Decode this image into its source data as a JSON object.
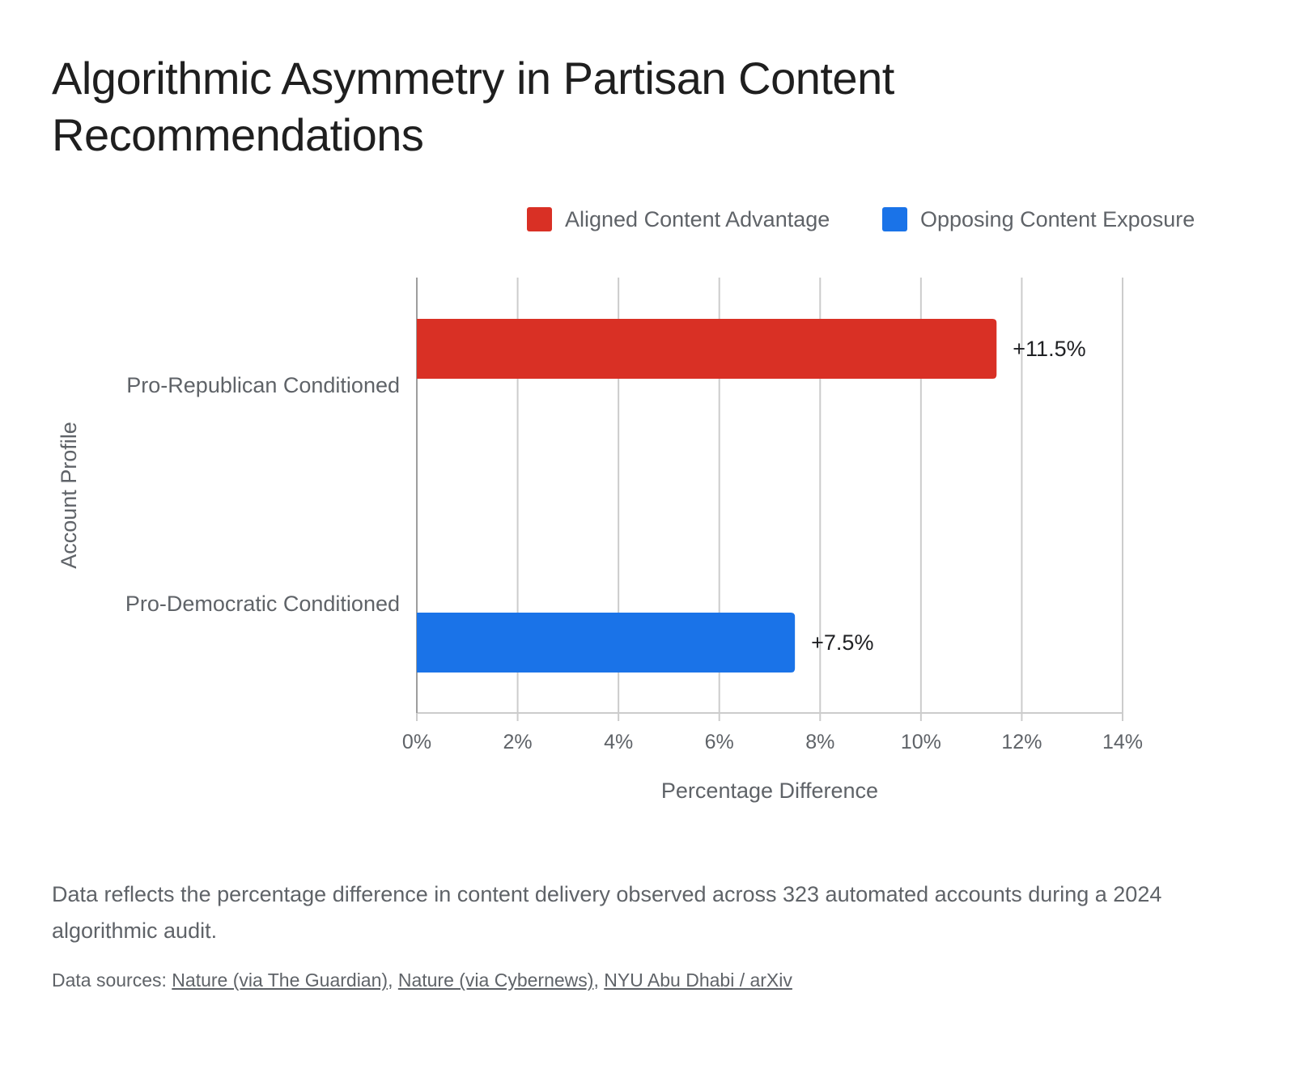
{
  "title": "Algorithmic Asymmetry in Partisan Content Recommendations",
  "chart_data": {
    "type": "bar",
    "orientation": "horizontal",
    "title": "Algorithmic Asymmetry in Partisan Content Recommendations",
    "xlabel": "Percentage Difference",
    "ylabel": "Account Profile",
    "categories": [
      "Pro-Republican Conditioned",
      "Pro-Democratic Conditioned"
    ],
    "series": [
      {
        "name": "Aligned Content Advantage",
        "color": "#d93025",
        "values": [
          11.5,
          null
        ]
      },
      {
        "name": "Opposing Content Exposure",
        "color": "#1a73e8",
        "values": [
          null,
          7.5
        ]
      }
    ],
    "data_labels": [
      "+11.5%",
      "+7.5%"
    ],
    "xlim": [
      0,
      14
    ],
    "x_ticks": [
      0,
      2,
      4,
      6,
      8,
      10,
      12,
      14
    ],
    "x_tick_labels": [
      "0%",
      "2%",
      "4%",
      "6%",
      "8%",
      "10%",
      "12%",
      "14%"
    ],
    "grid": true,
    "legend_position": "top-right"
  },
  "note": "Data reflects the percentage difference in content delivery observed across 323 automated accounts during a 2024 algorithmic audit.",
  "sources": {
    "prefix": "Data sources:",
    "links": [
      "Nature (via The Guardian)",
      "Nature (via Cybernews)",
      "NYU Abu Dhabi / arXiv"
    ]
  }
}
